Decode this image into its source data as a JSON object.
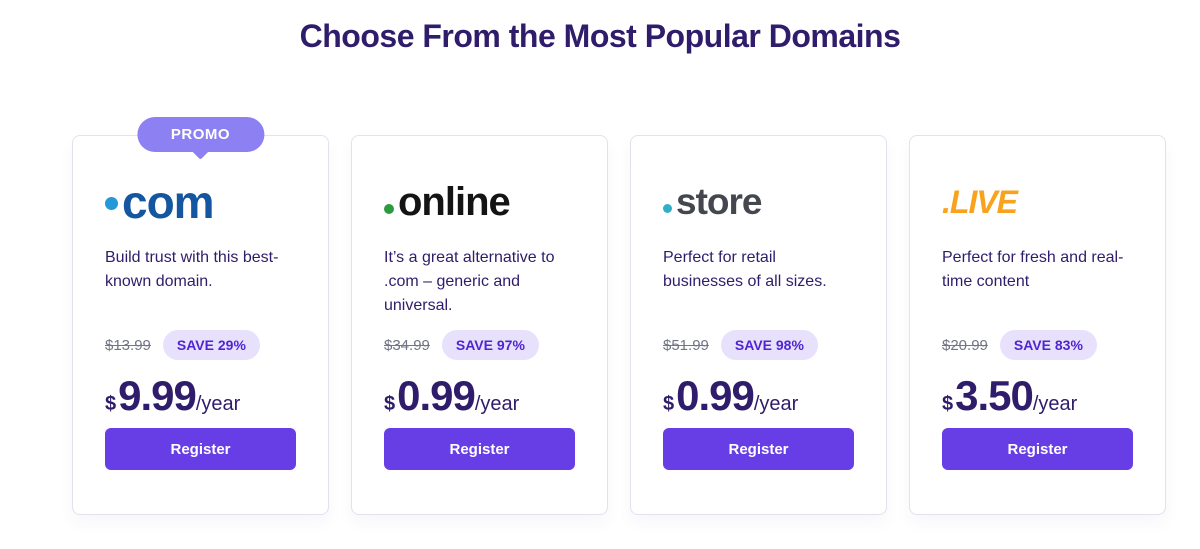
{
  "header": {
    "title": "Choose From the Most Popular Domains"
  },
  "promo_label": "PROMO",
  "colors": {
    "heading_text": "#2f1c6a",
    "body_text": "#2f1c6a",
    "accent_purple": "#673de6",
    "promo_badge_bg": "#8d80f2",
    "save_badge_bg": "#e8e1fc",
    "save_badge_text": "#5025d1",
    "old_price_gray": "#727586",
    "card_border": "#e2e1f0"
  },
  "cards": [
    {
      "id": "com",
      "tld": "com",
      "promo": true,
      "description": "Build trust with this best-known domain.",
      "old_price": "$13.99",
      "save_label": "SAVE 29%",
      "currency": "$",
      "price": "9.99",
      "period": "/year",
      "register_label": "Register",
      "logo": {
        "color": "#1456a0",
        "font_size": 46,
        "italic": false,
        "dot": {
          "color": "#2598d8",
          "size": 13,
          "raise": 8
        }
      }
    },
    {
      "id": "online",
      "tld": "online",
      "promo": false,
      "description": "It’s a great alternative to .com – generic and universal.",
      "old_price": "$34.99",
      "save_label": "SAVE 97%",
      "currency": "$",
      "price": "0.99",
      "period": "/year",
      "register_label": "Register",
      "logo": {
        "color": "#141414",
        "font_size": 40,
        "italic": false,
        "dot": {
          "color": "#2a9c3f",
          "size": 10,
          "raise": 1
        }
      }
    },
    {
      "id": "store",
      "tld": "store",
      "promo": false,
      "description": "Perfect for retail businesses of all sizes.",
      "old_price": "$51.99",
      "save_label": "SAVE 98%",
      "currency": "$",
      "price": "0.99",
      "period": "/year",
      "register_label": "Register",
      "logo": {
        "color": "#45474f",
        "font_size": 37,
        "italic": false,
        "dot": {
          "color": "#2fb0c7",
          "size": 9,
          "raise": 1
        }
      }
    },
    {
      "id": "live",
      "tld": ".LIVE",
      "promo": false,
      "description": "Perfect for fresh and real-time content",
      "old_price": "$20.99",
      "save_label": "SAVE 83%",
      "currency": "$",
      "price": "3.50",
      "period": "/year",
      "register_label": "Register",
      "logo": {
        "color": "#f9a21d",
        "font_size": 32,
        "italic": true,
        "dot": null
      }
    }
  ]
}
